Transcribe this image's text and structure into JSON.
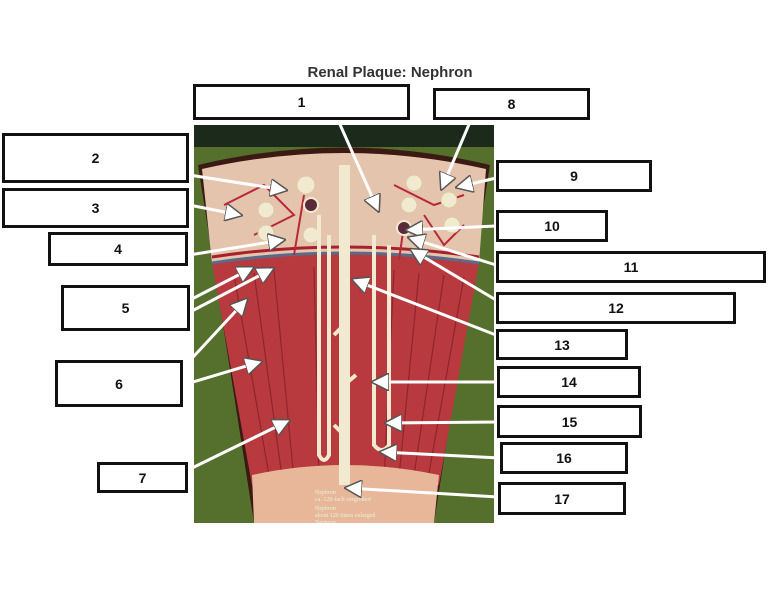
{
  "title": "Renal Plaque: Nephron",
  "photo_captions": [
    "Nephron",
    "ca. 120-fach vergrößert",
    "Nephron",
    "about 120 times enlarged",
    "Nephron"
  ],
  "labels": [
    "1",
    "2",
    "3",
    "4",
    "5",
    "6",
    "7",
    "8",
    "9",
    "10",
    "11",
    "12",
    "13",
    "14",
    "15",
    "16",
    "17"
  ],
  "colors": {
    "background": "#4f6b2a",
    "cortex": "#e8c8b0",
    "vessels": "#b8283a",
    "tubule": "#f2ead0",
    "arrow": "#ffffff"
  }
}
